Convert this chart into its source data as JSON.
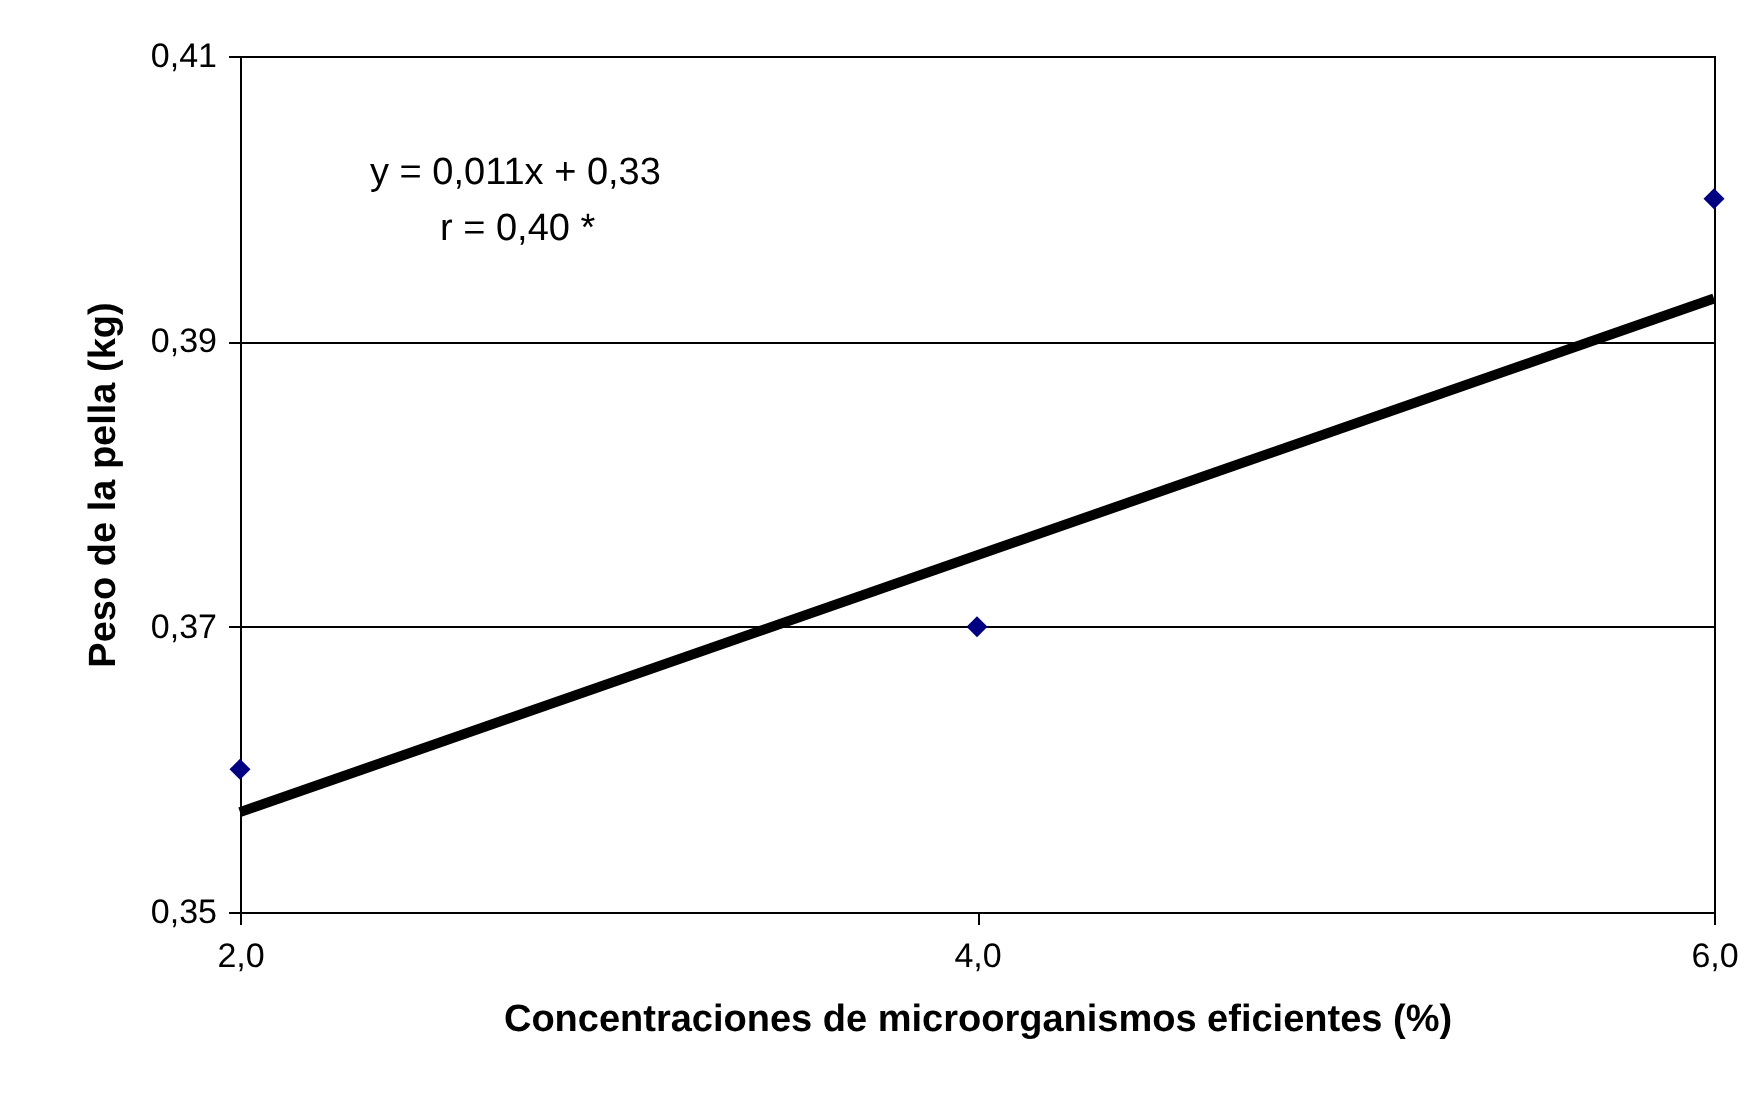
{
  "chart_data": {
    "type": "scatter",
    "xlabel": "Concentraciones de microorganismos eficientes (%)",
    "ylabel": "Peso de la pella (kg)",
    "xlim": [
      2,
      6
    ],
    "xticks": [
      {
        "value": 2,
        "label": "2,0"
      },
      {
        "value": 4,
        "label": "4,0"
      },
      {
        "value": 6,
        "label": "6,0"
      }
    ],
    "ylim": [
      0.35,
      0.41
    ],
    "yticks": [
      {
        "value": 0.35,
        "label": "0,35"
      },
      {
        "value": 0.37,
        "label": "0,37"
      },
      {
        "value": 0.39,
        "label": "0,39"
      },
      {
        "value": 0.41,
        "label": "0,41"
      }
    ],
    "grid": "y",
    "legend": false,
    "annotations": [
      "y = 0,011x + 0,33",
      "r = 0,40 *"
    ],
    "series": [
      {
        "type": "scatter",
        "marker": "diamond",
        "color": "#000080",
        "x": [
          2,
          4,
          6
        ],
        "values": [
          0.36,
          0.37,
          0.4
        ]
      },
      {
        "type": "line",
        "line_style": "solid",
        "color": "#000000",
        "x": [
          2,
          6
        ],
        "values": [
          0.357,
          0.393
        ]
      }
    ]
  }
}
